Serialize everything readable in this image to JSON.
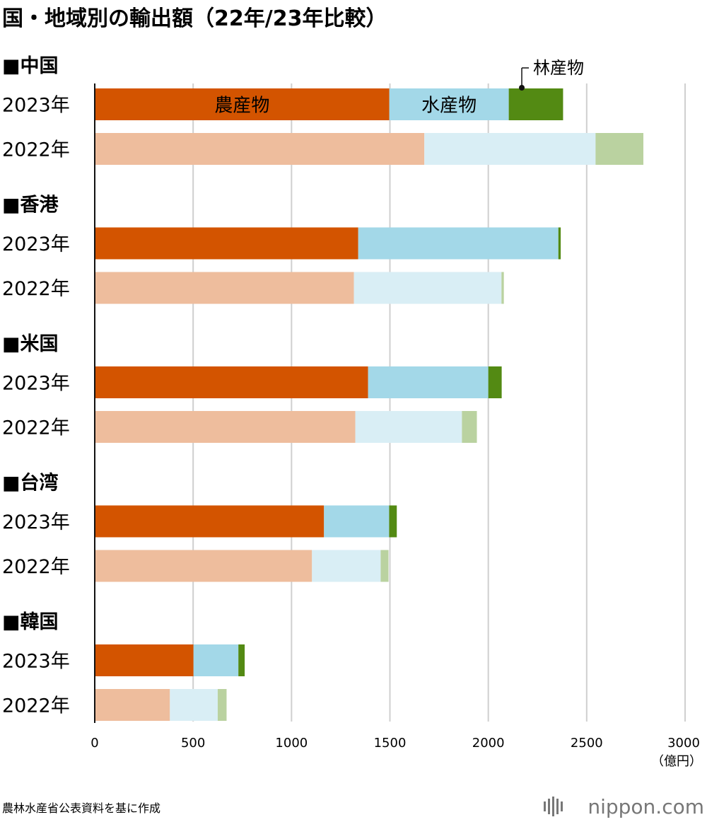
{
  "chart_data": {
    "type": "bar",
    "orientation": "horizontal",
    "stacked": true,
    "title": "国・地域別の輸出額（22年/23年比較）",
    "unit": "（億円）",
    "xlim": [
      0,
      3000
    ],
    "xticks": [
      0,
      500,
      1000,
      1500,
      2000,
      2500,
      3000
    ],
    "grid": true,
    "segments": [
      "農産物",
      "水産物",
      "林産物"
    ],
    "segment_colors": {
      "2023": [
        "#D35400",
        "#A3D8E8",
        "#538A13"
      ],
      "2022": [
        "#EEBD9D",
        "#D9EEF5",
        "#BAD2A0"
      ]
    },
    "groups": [
      {
        "name": "■中国",
        "rows": [
          {
            "year": "2023年",
            "values": [
              1497,
              607,
              276
            ]
          },
          {
            "year": "2022年",
            "values": [
              1675,
              870,
              243
            ]
          }
        ]
      },
      {
        "name": "■香港",
        "rows": [
          {
            "year": "2023年",
            "values": [
              1339,
              1017,
              12
            ]
          },
          {
            "year": "2022年",
            "values": [
              1317,
              750,
              12
            ]
          }
        ]
      },
      {
        "name": "■米国",
        "rows": [
          {
            "year": "2023年",
            "values": [
              1389,
              611,
              68
            ]
          },
          {
            "year": "2022年",
            "values": [
              1324,
              542,
              76
            ]
          }
        ]
      },
      {
        "name": "■台湾",
        "rows": [
          {
            "year": "2023年",
            "values": [
              1165,
              331,
              39
            ]
          },
          {
            "year": "2022年",
            "values": [
              1104,
              349,
              40
            ]
          }
        ]
      },
      {
        "name": "■韓国",
        "rows": [
          {
            "year": "2023年",
            "values": [
              502,
              228,
              32
            ]
          },
          {
            "year": "2022年",
            "values": [
              382,
              243,
              45
            ]
          }
        ]
      }
    ],
    "labels": {
      "agri": "農産物",
      "fish": "水産物",
      "forest": "林産物"
    }
  },
  "source": "農林水産省公表資料を基に作成",
  "brand": "nippon.com"
}
